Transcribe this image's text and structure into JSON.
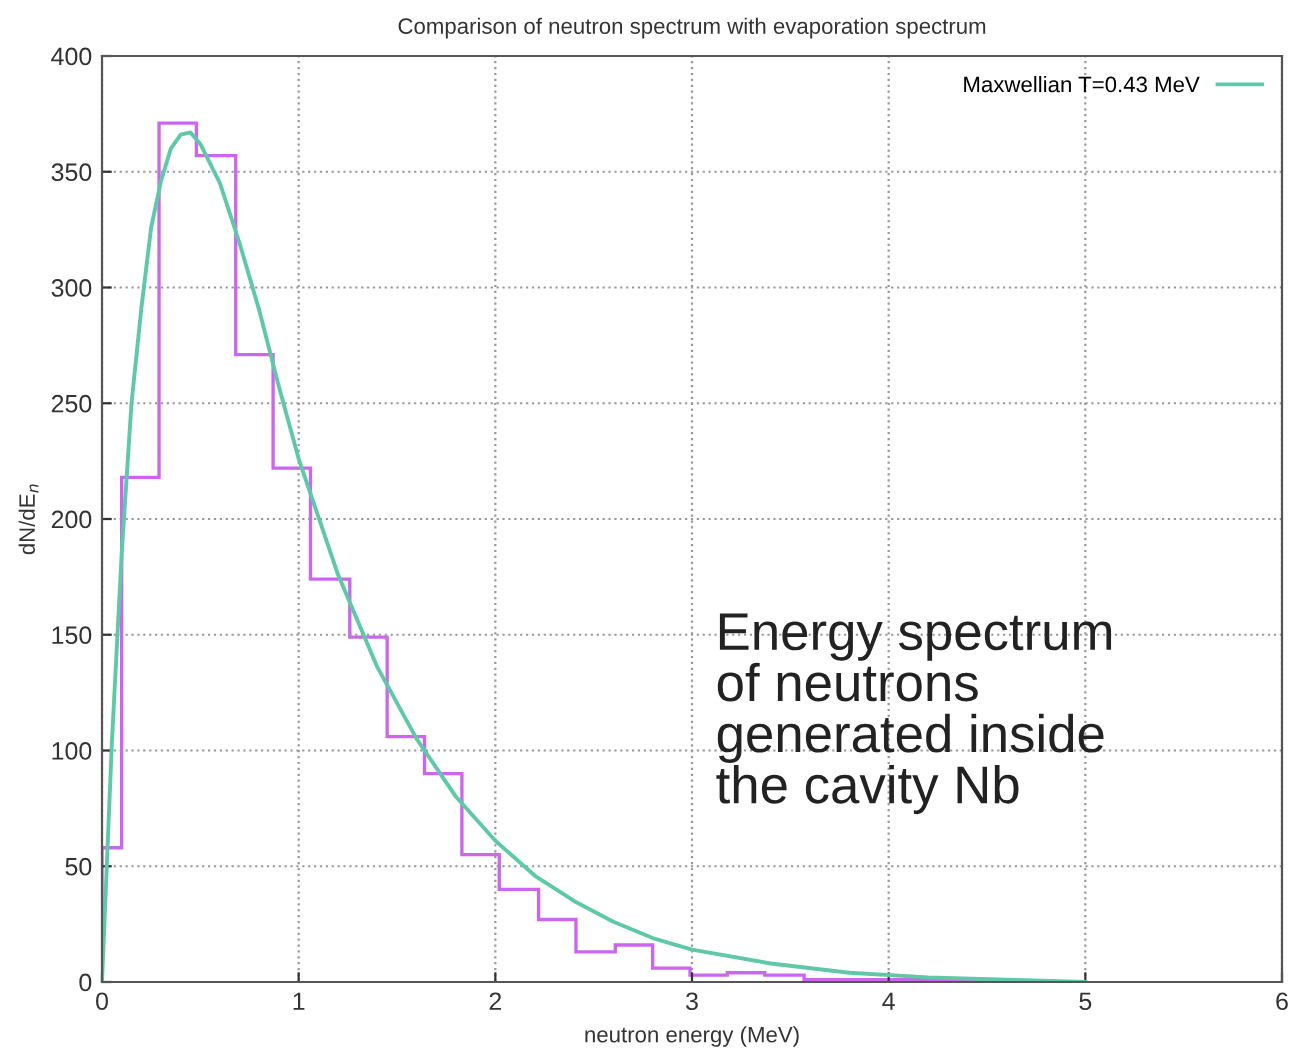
{
  "chart_data": {
    "type": "line",
    "title": "Comparison of neutron spectrum with evaporation spectrum",
    "xlabel": "neutron energy (MeV)",
    "ylabel": "dN/dE$_{n}$",
    "xlim": [
      0,
      6
    ],
    "ylim": [
      0,
      400
    ],
    "xticks": [
      0,
      1,
      2,
      3,
      4,
      5,
      6
    ],
    "yticks": [
      0,
      50,
      100,
      150,
      200,
      250,
      300,
      350,
      400
    ],
    "grid": true,
    "legend": "top right",
    "annotations": [
      "Energy spectrum\nof neutrons\ngenerated inside\nthe cavity Nb"
    ],
    "series": [
      {
        "type": "histogram",
        "color": "#cc66ee",
        "bins": [
          0,
          0.1,
          0.29,
          0.48,
          0.68,
          0.87,
          1.06,
          1.26,
          1.45,
          1.64,
          1.83,
          2.02,
          2.22,
          2.41,
          2.61,
          2.8,
          2.99,
          3.18,
          3.37,
          3.57,
          3.76,
          3.95,
          4.14,
          4.34,
          4.53
        ],
        "values": [
          58,
          218,
          371,
          357,
          271,
          222,
          174,
          149,
          106,
          90,
          55,
          40,
          27,
          13,
          16,
          6,
          3,
          4,
          3,
          1,
          1,
          1,
          1,
          1
        ]
      },
      {
        "name": "Maxwellian T=0.43 MeV",
        "color": "#5fc8a8",
        "x": [
          0,
          0.05,
          0.1,
          0.15,
          0.2,
          0.25,
          0.3,
          0.35,
          0.4,
          0.45,
          0.5,
          0.6,
          0.7,
          0.8,
          0.9,
          1.0,
          1.2,
          1.4,
          1.6,
          1.8,
          2.0,
          2.2,
          2.4,
          2.6,
          2.8,
          3.0,
          3.4,
          3.8,
          4.2,
          4.6,
          5.0
        ],
        "values": [
          0,
          103,
          185,
          250,
          291,
          326,
          346,
          360,
          366,
          367,
          362,
          345,
          319,
          290,
          257,
          226,
          176,
          136,
          105,
          80,
          61,
          46,
          35,
          26,
          19,
          14,
          8,
          4,
          2,
          1,
          0
        ]
      }
    ]
  }
}
